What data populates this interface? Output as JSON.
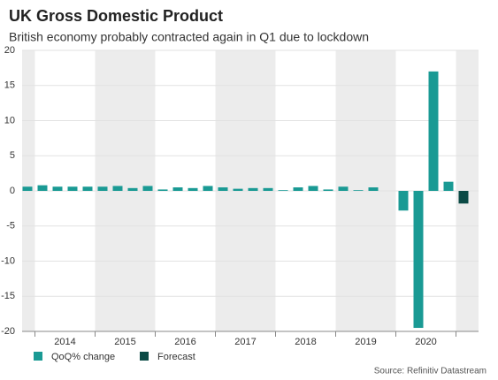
{
  "chart_data": {
    "type": "bar",
    "title": "UK Gross Domestic Product",
    "subtitle": "British economy probably contracted again in Q1 due to lockdown",
    "source": "Source: Refinitiv Datastream",
    "categories": [
      null,
      null,
      null,
      null,
      null,
      null,
      null,
      null,
      null,
      null,
      null,
      null,
      null,
      null,
      null,
      null,
      null,
      null,
      null,
      null,
      null,
      null,
      null,
      null,
      null,
      null,
      null,
      null,
      null,
      null
    ],
    "year_labels": [
      "2014",
      "2015",
      "2016",
      "2017",
      "2018",
      "2019",
      "2020"
    ],
    "series": [
      {
        "name": "QoQ% change",
        "color": "#1a9a94",
        "values": [
          0.6,
          0.8,
          0.6,
          0.6,
          0.6,
          0.6,
          0.7,
          0.4,
          0.7,
          0.2,
          0.5,
          0.4,
          0.7,
          0.5,
          0.3,
          0.4,
          0.4,
          0.1,
          0.5,
          0.7,
          0.2,
          0.6,
          0.1,
          0.5,
          0.0,
          -2.8,
          -19.5,
          17.0,
          1.3,
          null
        ]
      },
      {
        "name": "Forecast",
        "color": "#0b4a45",
        "values": [
          null,
          null,
          null,
          null,
          null,
          null,
          null,
          null,
          null,
          null,
          null,
          null,
          null,
          null,
          null,
          null,
          null,
          null,
          null,
          null,
          null,
          null,
          null,
          null,
          null,
          null,
          null,
          null,
          null,
          -1.8
        ]
      }
    ],
    "ylim": [
      -20,
      20
    ],
    "yticks": [
      -20,
      -15,
      -10,
      -5,
      0,
      5,
      10,
      15,
      20
    ],
    "grid": true,
    "legend": "bottom"
  }
}
